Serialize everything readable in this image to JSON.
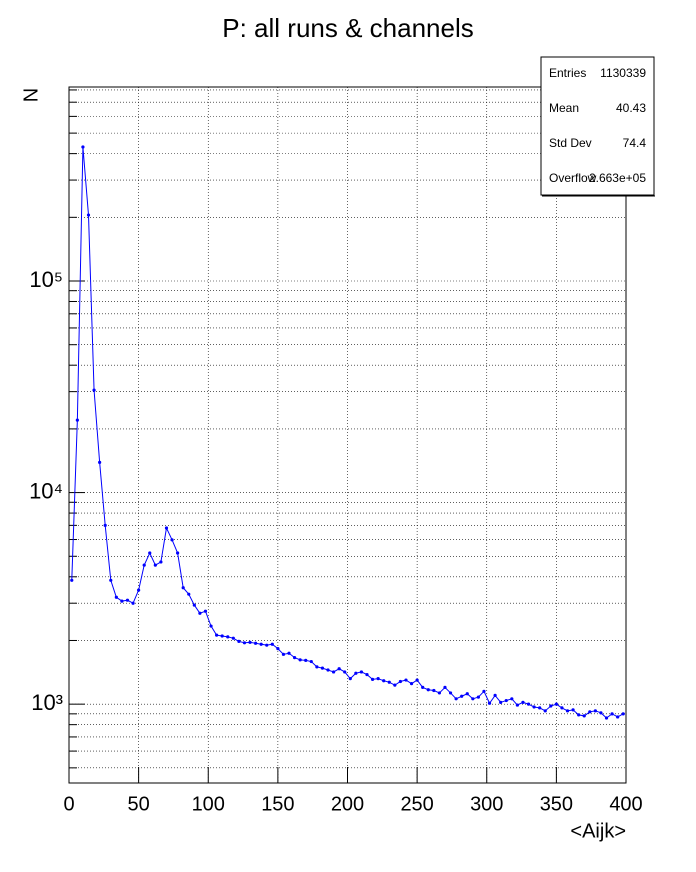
{
  "chart_data": {
    "type": "line",
    "title": "P: all runs & channels",
    "x_label": "<Aijk>",
    "y_label": "N",
    "ylog": true,
    "grid": true,
    "xlim": [
      0,
      400
    ],
    "xticks": [
      0,
      50,
      100,
      150,
      200,
      250,
      300,
      350,
      400
    ],
    "ylim": [
      424,
      826000
    ],
    "yticks": [
      {
        "value": 1000,
        "label": "10³"
      },
      {
        "value": 10000,
        "label": "10⁴"
      },
      {
        "value": 100000,
        "label": "10⁵"
      }
    ],
    "yminorticks": [
      500,
      600,
      700,
      800,
      900,
      2000,
      3000,
      4000,
      5000,
      6000,
      7000,
      8000,
      9000,
      20000,
      30000,
      40000,
      50000,
      60000,
      70000,
      80000,
      90000,
      200000,
      300000,
      400000,
      500000,
      600000,
      700000,
      800000
    ],
    "x": [
      2,
      6,
      10,
      14,
      18,
      22,
      26,
      30,
      34,
      38,
      42,
      46,
      50,
      54,
      58,
      62,
      66,
      70,
      74,
      78,
      82,
      86,
      90,
      94,
      98,
      102,
      106,
      110,
      114,
      118,
      122,
      126,
      130,
      134,
      138,
      142,
      146,
      150,
      154,
      158,
      162,
      166,
      170,
      174,
      178,
      182,
      186,
      190,
      194,
      198,
      202,
      206,
      210,
      214,
      218,
      222,
      226,
      230,
      234,
      238,
      242,
      246,
      250,
      254,
      258,
      262,
      266,
      270,
      274,
      278,
      282,
      286,
      290,
      294,
      298,
      302,
      306,
      310,
      314,
      318,
      322,
      326,
      330,
      334,
      338,
      342,
      346,
      350,
      354,
      358,
      362,
      366,
      370,
      374,
      378,
      382,
      386,
      390,
      394,
      398
    ],
    "series": [
      {
        "color": "#0000ff",
        "values": [
          3850,
          22000,
          430000,
          205000,
          30500,
          13900,
          7000,
          3850,
          3200,
          3070,
          3100,
          3000,
          3460,
          4540,
          5180,
          4540,
          4700,
          6800,
          5980,
          5180,
          3550,
          3310,
          2940,
          2690,
          2750,
          2340,
          2120,
          2100,
          2080,
          2050,
          1980,
          1950,
          1960,
          1940,
          1920,
          1900,
          1920,
          1830,
          1720,
          1740,
          1660,
          1620,
          1610,
          1590,
          1500,
          1480,
          1450,
          1420,
          1470,
          1420,
          1320,
          1400,
          1420,
          1380,
          1310,
          1320,
          1290,
          1270,
          1230,
          1280,
          1300,
          1250,
          1300,
          1200,
          1170,
          1160,
          1130,
          1200,
          1130,
          1060,
          1090,
          1120,
          1060,
          1080,
          1150,
          1010,
          1100,
          1020,
          1040,
          1060,
          990,
          1020,
          1000,
          970,
          960,
          930,
          980,
          1000,
          960,
          930,
          940,
          890,
          880,
          920,
          930,
          910,
          860,
          900,
          870,
          900
        ]
      }
    ],
    "stats": [
      [
        "Entries",
        "1130339"
      ],
      [
        "Mean",
        "40.43"
      ],
      [
        "Std Dev",
        "74.4"
      ],
      [
        "Overflow",
        "2.663e+05"
      ]
    ]
  }
}
